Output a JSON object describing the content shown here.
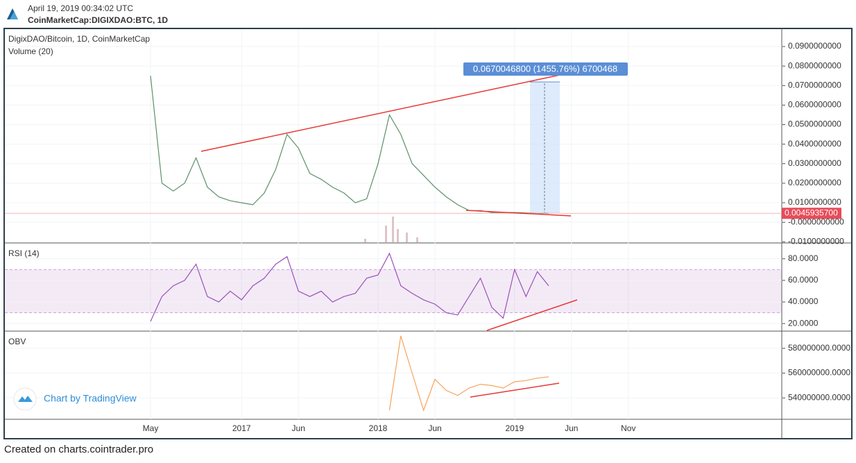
{
  "header": {
    "date": "April 19, 2019 00:34:02 UTC",
    "symbol": "CoinMarketCap:DIGIXDAO:BTC, 1D"
  },
  "footer": "Created on charts.cointrader.pro",
  "branding": "Chart by TradingView",
  "chart_data": [
    {
      "type": "line",
      "title": "DigixDAO/Bitcoin, 1D, CoinMarketCap",
      "subtitle": "Volume (20)",
      "color": "#5d8f6a",
      "x": [
        "2016-05",
        "2016-06",
        "2016-07",
        "2016-08",
        "2016-09",
        "2016-10",
        "2016-11",
        "2016-12",
        "2017-01",
        "2017-02",
        "2017-03",
        "2017-04",
        "2017-05",
        "2017-06",
        "2017-07",
        "2017-08",
        "2017-09",
        "2017-10",
        "2017-11",
        "2017-12",
        "2018-01",
        "2018-02",
        "2018-03",
        "2018-04",
        "2018-05",
        "2018-06",
        "2018-07",
        "2018-08",
        "2018-09",
        "2018-10",
        "2018-11",
        "2018-12",
        "2019-01",
        "2019-02",
        "2019-03",
        "2019-04"
      ],
      "values": [
        0.075,
        0.02,
        0.016,
        0.02,
        0.033,
        0.018,
        0.013,
        0.011,
        0.01,
        0.009,
        0.015,
        0.027,
        0.045,
        0.038,
        0.025,
        0.022,
        0.018,
        0.015,
        0.01,
        0.012,
        0.03,
        0.055,
        0.045,
        0.03,
        0.024,
        0.018,
        0.013,
        0.009,
        0.006,
        0.006,
        0.005,
        0.005,
        0.005,
        0.0048,
        0.0045,
        0.0046
      ],
      "ylim": [
        -0.0106,
        0.0989
      ],
      "yticks": [
        {
          "value": 0.09,
          "label": "0.0900000000"
        },
        {
          "value": 0.08,
          "label": "0.0800000000"
        },
        {
          "value": 0.07,
          "label": "0.0700000000"
        },
        {
          "value": 0.06,
          "label": "0.0600000000"
        },
        {
          "value": 0.05,
          "label": "0.0500000000"
        },
        {
          "value": 0.04,
          "label": "0.0400000000"
        },
        {
          "value": 0.03,
          "label": "0.0300000000"
        },
        {
          "value": 0.02,
          "label": "0.0200000000"
        },
        {
          "value": 0.01,
          "label": "0.0100000000"
        },
        {
          "value": 0,
          "label": "-0.0000000000"
        },
        {
          "value": -0.01,
          "label": "-0.0100000000"
        }
      ],
      "last_value": {
        "value": 0.00459357,
        "label": "0.0045935700"
      },
      "annotation": "0.0670046800 (1455.76%) 6700468"
    },
    {
      "type": "line",
      "title": "RSI (14)",
      "color": "#9c4fb8",
      "x": [
        "2016-05",
        "2016-06",
        "2016-07",
        "2016-08",
        "2016-09",
        "2016-10",
        "2016-11",
        "2016-12",
        "2017-01",
        "2017-02",
        "2017-03",
        "2017-04",
        "2017-05",
        "2017-06",
        "2017-07",
        "2017-08",
        "2017-09",
        "2017-10",
        "2017-11",
        "2017-12",
        "2018-01",
        "2018-02",
        "2018-03",
        "2018-04",
        "2018-05",
        "2018-06",
        "2018-07",
        "2018-08",
        "2018-09",
        "2018-10",
        "2018-11",
        "2018-12",
        "2019-01",
        "2019-02",
        "2019-03",
        "2019-04"
      ],
      "values": [
        22,
        45,
        55,
        60,
        75,
        45,
        40,
        50,
        42,
        55,
        62,
        75,
        82,
        50,
        45,
        50,
        40,
        45,
        48,
        62,
        65,
        85,
        55,
        48,
        42,
        38,
        30,
        28,
        45,
        62,
        35,
        25,
        70,
        45,
        68,
        55
      ],
      "ylim": [
        13,
        94
      ],
      "band": [
        30,
        70
      ],
      "yticks": [
        {
          "value": 80,
          "label": "80.0000"
        },
        {
          "value": 60,
          "label": "60.0000"
        },
        {
          "value": 40,
          "label": "40.0000"
        },
        {
          "value": 20,
          "label": "20.0000"
        }
      ]
    },
    {
      "type": "line",
      "title": "OBV",
      "color": "#f7a35c",
      "x": [
        "2018-02",
        "2018-03",
        "2018-04",
        "2018-05",
        "2018-06",
        "2018-07",
        "2018-08",
        "2018-09",
        "2018-10",
        "2018-11",
        "2018-12",
        "2019-01",
        "2019-02",
        "2019-03",
        "2019-04"
      ],
      "values": [
        530000000,
        590000000,
        560000000,
        530000000,
        555000000,
        546000000,
        542000000,
        548000000,
        551000000,
        550000000,
        548000000,
        553000000,
        554000000,
        556000000,
        557000000
      ],
      "ylim": [
        522800000,
        593300000
      ],
      "yticks": [
        {
          "value": 580000000,
          "label": "580000000.0000"
        },
        {
          "value": 560000000,
          "label": "560000000.0000"
        },
        {
          "value": 540000000,
          "label": "540000000.0000"
        }
      ],
      "xticks": [
        {
          "value": "2016-05",
          "label": "May"
        },
        {
          "value": "2017-01",
          "label": "2017"
        },
        {
          "value": "2017-06",
          "label": "Jun"
        },
        {
          "value": "2018-01",
          "label": "2018"
        },
        {
          "value": "2018-06",
          "label": "Jun"
        },
        {
          "value": "2019-01",
          "label": "2019"
        },
        {
          "value": "2019-06",
          "label": "Jun"
        },
        {
          "value": "2019-11",
          "label": "Nov"
        }
      ]
    }
  ]
}
